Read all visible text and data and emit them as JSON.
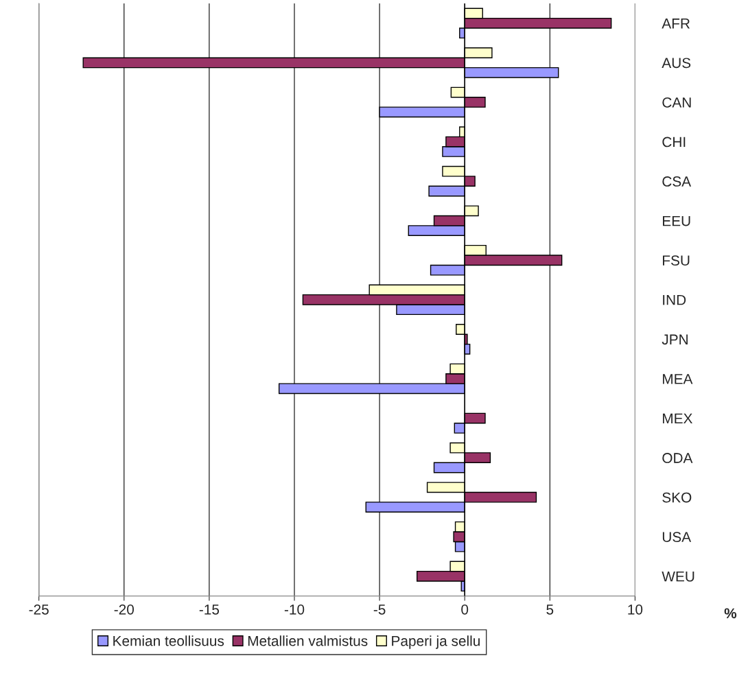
{
  "chart_data": {
    "type": "bar",
    "orientation": "horizontal",
    "xlabel": "%",
    "categories": [
      "AFR",
      "AUS",
      "CAN",
      "CHI",
      "CSA",
      "EEU",
      "FSU",
      "IND",
      "JPN",
      "MEA",
      "MEX",
      "ODA",
      "SKO",
      "USA",
      "WEU"
    ],
    "series": [
      {
        "name": "Kemian teollisuus",
        "color": "#9999ff",
        "values": [
          -0.3,
          5.5,
          -5.0,
          -1.3,
          -2.1,
          -3.3,
          -2.0,
          -4.0,
          0.3,
          -10.9,
          -0.6,
          -1.8,
          -5.8,
          -0.55,
          -0.2
        ]
      },
      {
        "name": "Metallien valmistus",
        "color": "#993366",
        "values": [
          8.6,
          -22.4,
          1.2,
          -1.1,
          0.6,
          -1.8,
          5.7,
          -9.5,
          0.15,
          -1.1,
          1.2,
          1.5,
          4.2,
          -0.65,
          -2.8
        ]
      },
      {
        "name": "Paperi ja sellu",
        "color": "#ffffcc",
        "values": [
          1.05,
          1.6,
          -0.8,
          -0.3,
          -1.3,
          0.8,
          1.25,
          -5.6,
          -0.5,
          -0.85,
          null,
          -0.85,
          -2.2,
          -0.55,
          -0.85
        ]
      }
    ],
    "xlim": [
      -25,
      10
    ],
    "xticks": [
      -25,
      -20,
      -15,
      -10,
      -5,
      0,
      5,
      10
    ],
    "grid": "x",
    "legend": "bottom"
  }
}
